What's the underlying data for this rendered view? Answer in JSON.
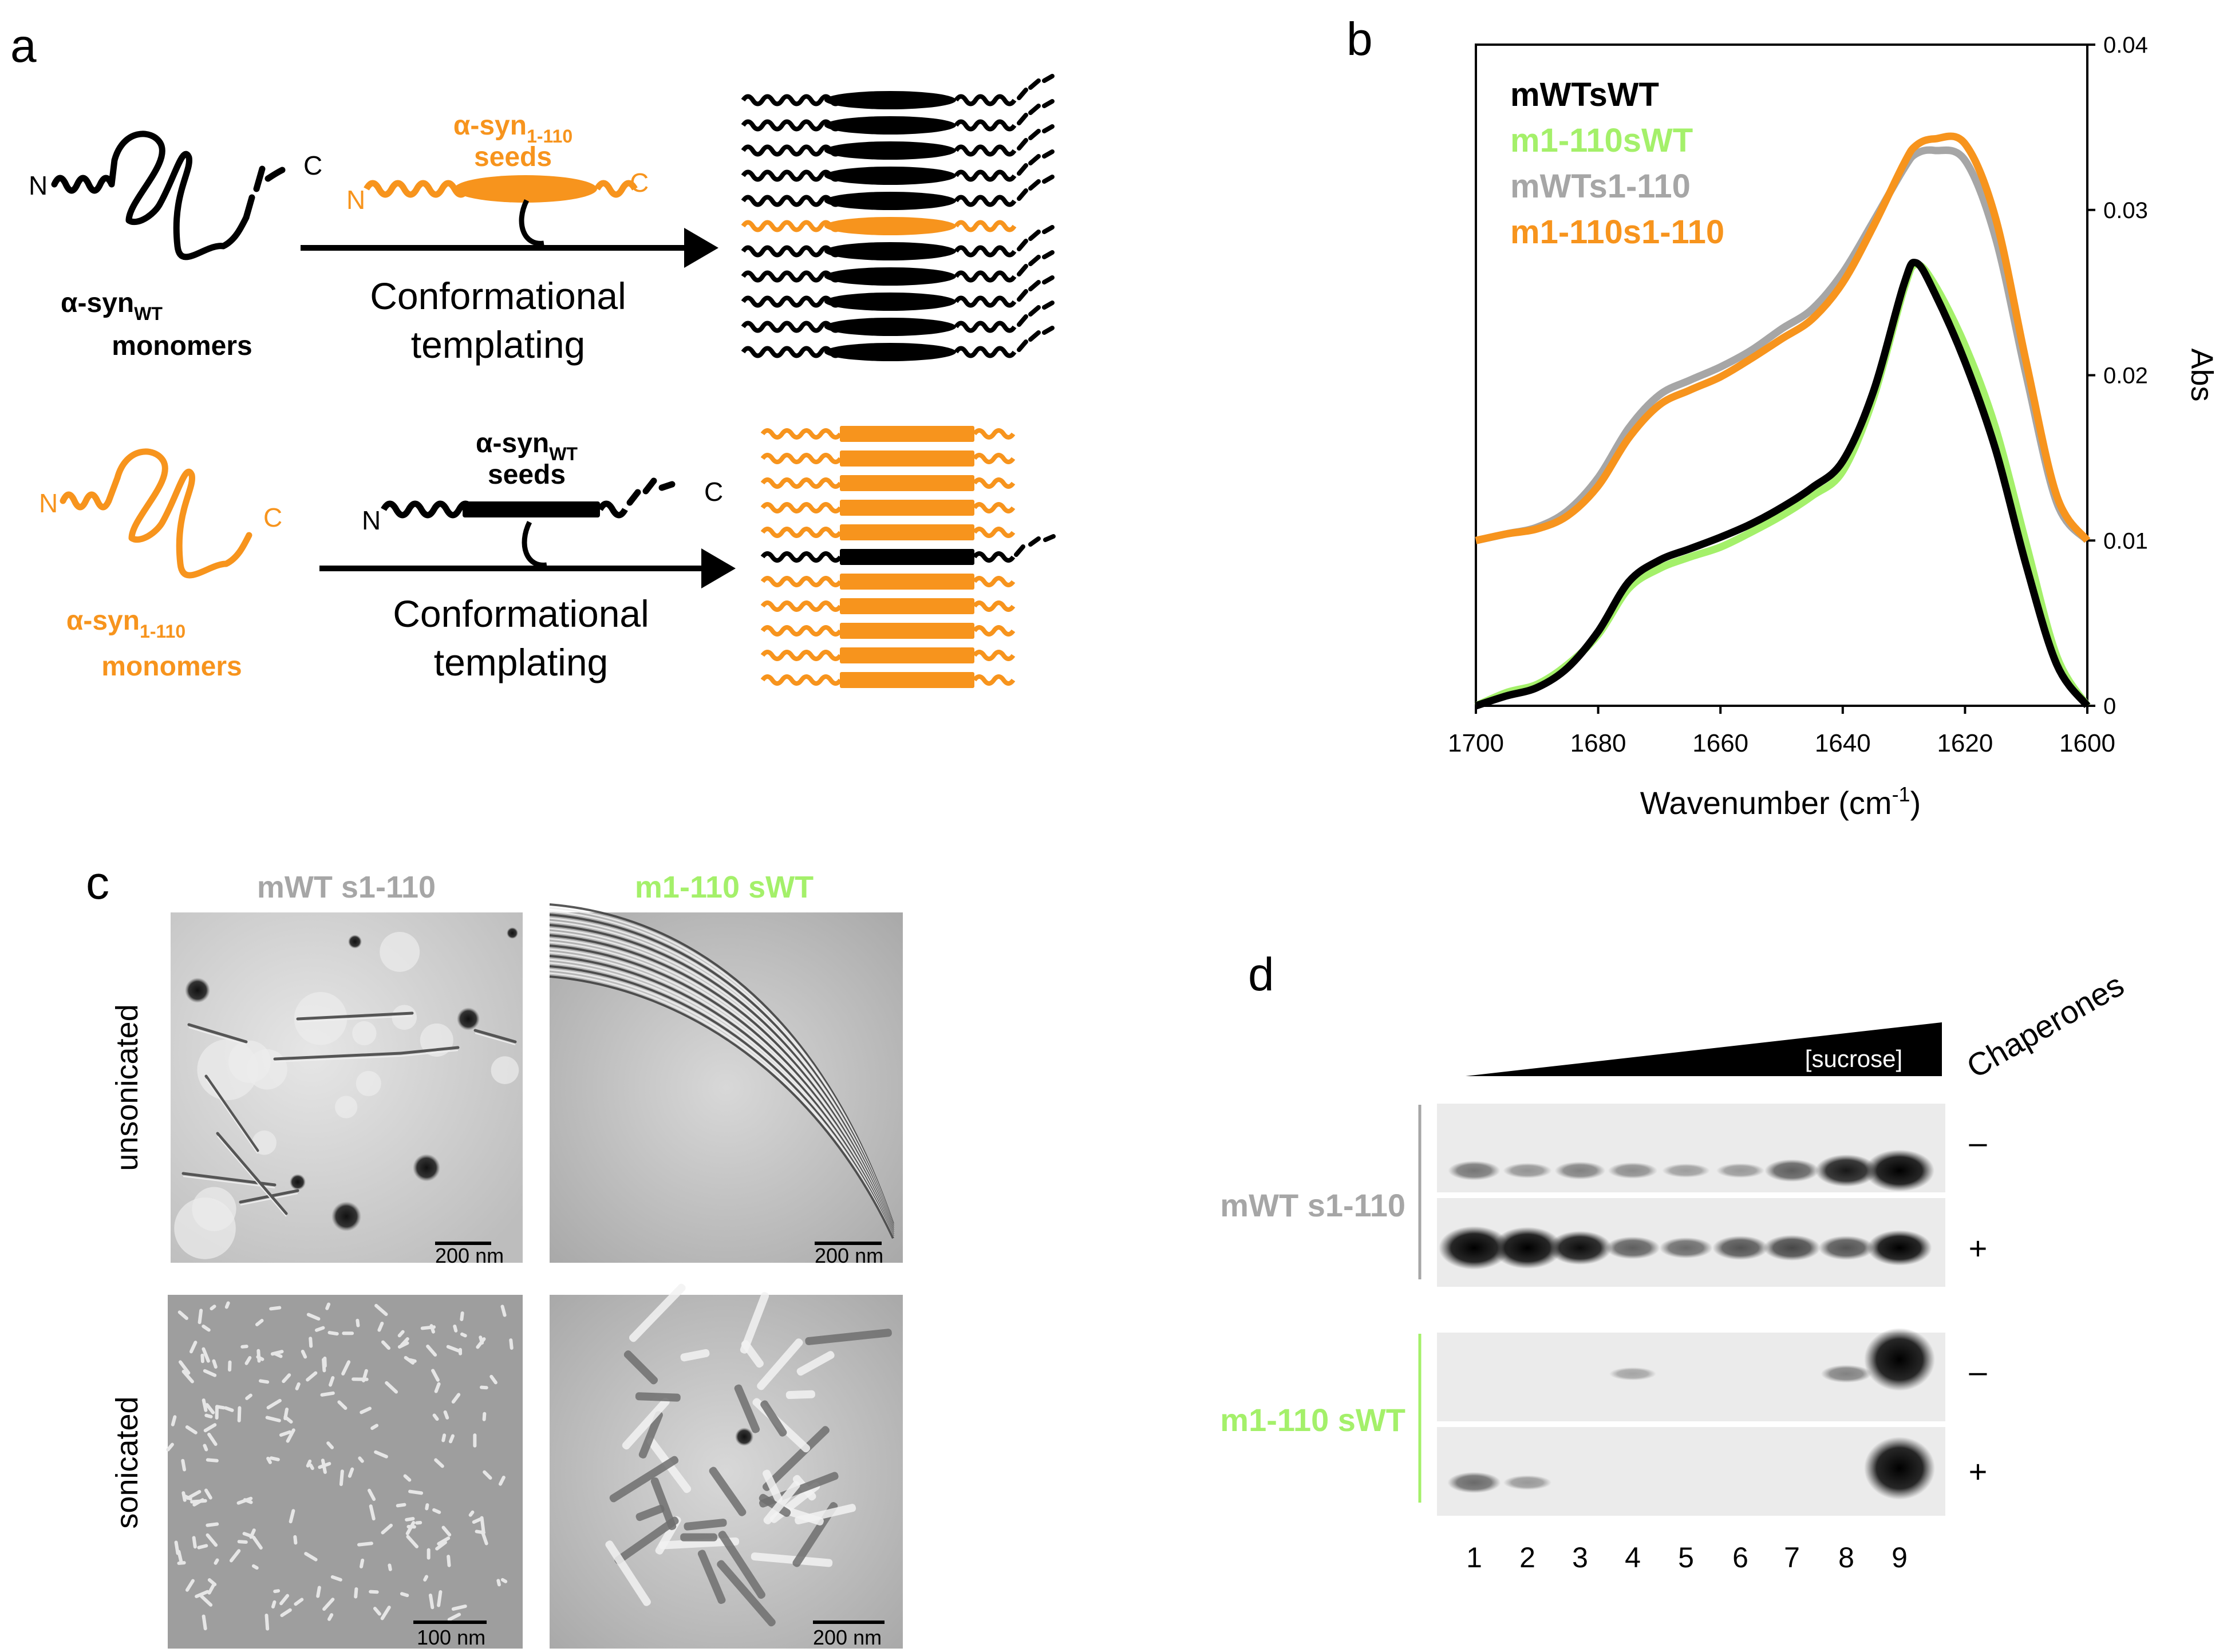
{
  "colors": {
    "black": "#000000",
    "orange": "#F7941D",
    "gray": "#A6A6A6",
    "green": "#A4F06A",
    "em_background": "#C9C9C9",
    "blot_background": "#EBEBEB"
  },
  "panel_a": {
    "label": "a",
    "top": {
      "n_term": "N",
      "c_term": "C",
      "monomer_line1": "α-syn",
      "monomer_sub": "WT",
      "monomer_line2": "monomers",
      "seed_line1": "α-syn",
      "seed_sub": "1-110",
      "seed_line2": "seeds",
      "seed_n": "N",
      "seed_c": "C",
      "arrow_line1": "Conformational",
      "arrow_line2": "templating"
    },
    "bottom": {
      "n_term": "N",
      "c_term": "C",
      "monomer_line1": "α-syn",
      "monomer_sub": "1-110",
      "monomer_line2": "monomers",
      "seed_line1": "α-syn",
      "seed_sub": "WT",
      "seed_line2": "seeds",
      "seed_n": "N",
      "seed_c": "C",
      "arrow_line1": "Conformational",
      "arrow_line2": "templating"
    }
  },
  "panel_b": {
    "label": "b",
    "chart_data": {
      "type": "line",
      "xlabel": "Wavenumber (cm",
      "xlabel_sup": "-1",
      "xlabel_close": ")",
      "ylabel": "Abs",
      "xlim": [
        1700,
        1600
      ],
      "ylim": [
        0,
        0.04
      ],
      "x_ticks": [
        "1700",
        "1680",
        "1660",
        "1640",
        "1620",
        "1600"
      ],
      "y_ticks": [
        "0",
        "0.01",
        "0.02",
        "0.03",
        "0.04"
      ],
      "x": [
        1700,
        1695,
        1690,
        1685,
        1680,
        1675,
        1670,
        1665,
        1660,
        1655,
        1650,
        1645,
        1640,
        1635,
        1630,
        1628,
        1625,
        1620,
        1615,
        1610,
        1605,
        1600
      ],
      "series": [
        {
          "name": "mWTsWT",
          "color": "#000000",
          "values": [
            0.0,
            0.0006,
            0.0011,
            0.0023,
            0.0045,
            0.0075,
            0.0088,
            0.0095,
            0.0102,
            0.011,
            0.012,
            0.0132,
            0.0148,
            0.019,
            0.0255,
            0.0268,
            0.025,
            0.0208,
            0.0155,
            0.0085,
            0.0025,
            0.0
          ]
        },
        {
          "name": "m1-110sWT",
          "color": "#A4F06A",
          "values": [
            0.0,
            0.0008,
            0.0013,
            0.0025,
            0.0043,
            0.0071,
            0.0083,
            0.009,
            0.0096,
            0.0105,
            0.0115,
            0.0127,
            0.0142,
            0.0186,
            0.0252,
            0.0267,
            0.0255,
            0.0218,
            0.0168,
            0.0098,
            0.003,
            0.0
          ]
        },
        {
          "name": "mWTs1-110",
          "color": "#A6A6A6",
          "values": [
            0.01,
            0.0104,
            0.0108,
            0.0118,
            0.0138,
            0.0168,
            0.0188,
            0.0197,
            0.0205,
            0.0215,
            0.0228,
            0.024,
            0.0262,
            0.0293,
            0.0325,
            0.0334,
            0.0336,
            0.033,
            0.0283,
            0.02,
            0.0123,
            0.01
          ]
        },
        {
          "name": "m1-110s1-110",
          "color": "#F7941D",
          "values": [
            0.01,
            0.0104,
            0.0107,
            0.0115,
            0.0133,
            0.0162,
            0.0182,
            0.0191,
            0.0199,
            0.021,
            0.0222,
            0.0234,
            0.0256,
            0.029,
            0.0328,
            0.0339,
            0.0343,
            0.034,
            0.0295,
            0.0208,
            0.0127,
            0.01
          ]
        }
      ]
    }
  },
  "panel_c": {
    "label": "c",
    "col1": "mWT s1-110",
    "col2": "m1-110 sWT",
    "row1": "unsonicated",
    "row2": "sonicated",
    "scale_top_left": "200 nm",
    "scale_top_right": "200 nm",
    "scale_bottom_left": "100 nm",
    "scale_bottom_right": "200 nm"
  },
  "panel_d": {
    "label": "d",
    "gradient_label": "[sucrose]",
    "chaperones_label": "Chaperones",
    "group1": "mWT s1-110",
    "group2": "m1-110 sWT",
    "minus": "–",
    "plus": "+",
    "lanes": [
      "1",
      "2",
      "3",
      "4",
      "5",
      "6",
      "7",
      "8",
      "9"
    ],
    "band_intensity": {
      "mWT_minus": [
        0.25,
        0.12,
        0.2,
        0.15,
        0.08,
        0.1,
        0.35,
        0.65,
        0.95
      ],
      "mWT_plus": [
        1.0,
        0.95,
        0.7,
        0.35,
        0.3,
        0.4,
        0.45,
        0.4,
        0.75
      ],
      "m1_minus": [
        0.0,
        0.0,
        0.0,
        0.05,
        0.0,
        0.0,
        0.0,
        0.2,
        1.0
      ],
      "m1_plus": [
        0.3,
        0.1,
        0.0,
        0.0,
        0.0,
        0.0,
        0.0,
        0.0,
        1.0
      ]
    }
  }
}
